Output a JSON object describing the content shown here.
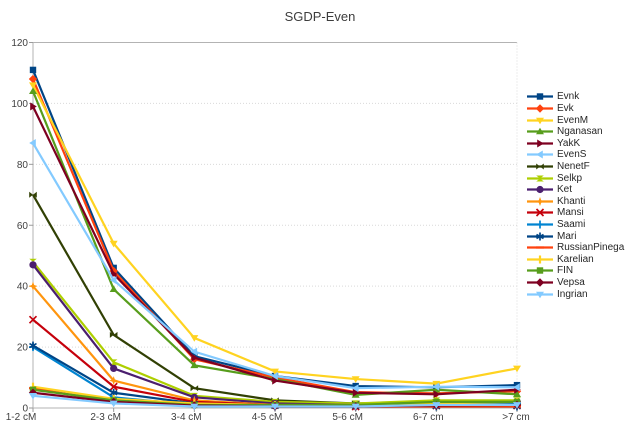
{
  "title": "SGDP-Even",
  "chart_data": {
    "type": "line",
    "title": "SGDP-Even",
    "xlabel": "",
    "ylabel": "",
    "ylim": [
      0,
      120
    ],
    "yticks": [
      0,
      20,
      40,
      60,
      80,
      100,
      120
    ],
    "grid": "horizontal-dotted",
    "legend_position": "right",
    "categories": [
      "1-2 cM",
      "2-3 cM",
      "3-4 cM",
      "4-5 cM",
      "5-6 cM",
      "6-7 cm",
      ">7 cm"
    ],
    "series": [
      {
        "name": "Evnk",
        "color": "#004586",
        "marker": "square",
        "values": [
          111,
          46,
          17,
          10.5,
          7.2,
          6.8,
          7.5
        ]
      },
      {
        "name": "Evk",
        "color": "#ff420e",
        "marker": "diamond",
        "values": [
          108,
          45,
          16,
          10,
          5.2,
          4.8,
          5.5
        ]
      },
      {
        "name": "EvenM",
        "color": "#ffd320",
        "marker": "arrow-down",
        "values": [
          106,
          54,
          23,
          12,
          9.5,
          8,
          13
        ]
      },
      {
        "name": "Nganasan",
        "color": "#579d1c",
        "marker": "arrow-up",
        "values": [
          104,
          39,
          14,
          9.5,
          4.3,
          6,
          4.5
        ]
      },
      {
        "name": "YakK",
        "color": "#7e0021",
        "marker": "arrow-right",
        "values": [
          99,
          44,
          16.5,
          9,
          5,
          4.5,
          6
        ]
      },
      {
        "name": "EvenS",
        "color": "#83caff",
        "marker": "arrow-left",
        "values": [
          87,
          42,
          18.5,
          10.5,
          6.5,
          7,
          6.8
        ]
      },
      {
        "name": "NenetF",
        "color": "#314004",
        "marker": "bowtie",
        "values": [
          70,
          24,
          6.5,
          2.5,
          1.5,
          2,
          1.5
        ]
      },
      {
        "name": "Selkp",
        "color": "#aecf00",
        "marker": "hourglass",
        "values": [
          48,
          15,
          4,
          2,
          1.5,
          2.5,
          2.5
        ]
      },
      {
        "name": "Ket",
        "color": "#4b1f6f",
        "marker": "circle",
        "values": [
          47,
          13,
          3.5,
          1.5,
          1,
          1.5,
          2
        ]
      },
      {
        "name": "Khanti",
        "color": "#ff950e",
        "marker": "star",
        "values": [
          40,
          9,
          2.5,
          1,
          0.8,
          1,
          1
        ]
      },
      {
        "name": "Mansi",
        "color": "#c5000b",
        "marker": "x",
        "values": [
          29,
          7,
          2,
          1,
          0.5,
          0.8,
          0.8
        ]
      },
      {
        "name": "Saami",
        "color": "#0084d1",
        "marker": "plus",
        "values": [
          20,
          3.5,
          1,
          0.8,
          0.8,
          1.2,
          1.5
        ]
      },
      {
        "name": "Mari",
        "color": "#004586",
        "marker": "asterisk",
        "values": [
          20.5,
          5,
          1.5,
          0.5,
          0.5,
          0.5,
          0.5
        ]
      },
      {
        "name": "RussianPinega",
        "color": "#ff420e",
        "marker": "hbar",
        "values": [
          6.5,
          2,
          1,
          0.5,
          0.5,
          0.5,
          0.5
        ]
      },
      {
        "name": "Karelian",
        "color": "#ffd320",
        "marker": "vbar",
        "values": [
          7,
          3,
          1.5,
          1,
          1,
          1.5,
          2
        ]
      },
      {
        "name": "FIN",
        "color": "#579d1c",
        "marker": "square",
        "values": [
          6,
          2.5,
          1,
          1,
          1,
          2,
          2
        ]
      },
      {
        "name": "Vepsa",
        "color": "#7e0021",
        "marker": "diamond",
        "values": [
          5,
          2,
          0.8,
          0.5,
          0.5,
          0.8,
          1
        ]
      },
      {
        "name": "Ingrian",
        "color": "#83caff",
        "marker": "arrow-down",
        "values": [
          4,
          1.5,
          0.5,
          0.5,
          0.5,
          1,
          1
        ]
      }
    ]
  },
  "style_colors": {
    "plot_border": "#b3b3b3",
    "gridline": "#d9d9d9",
    "tick": "#9a9a9a",
    "axis_text": "#3f3f3f",
    "title_text": "#3d3d3d"
  }
}
